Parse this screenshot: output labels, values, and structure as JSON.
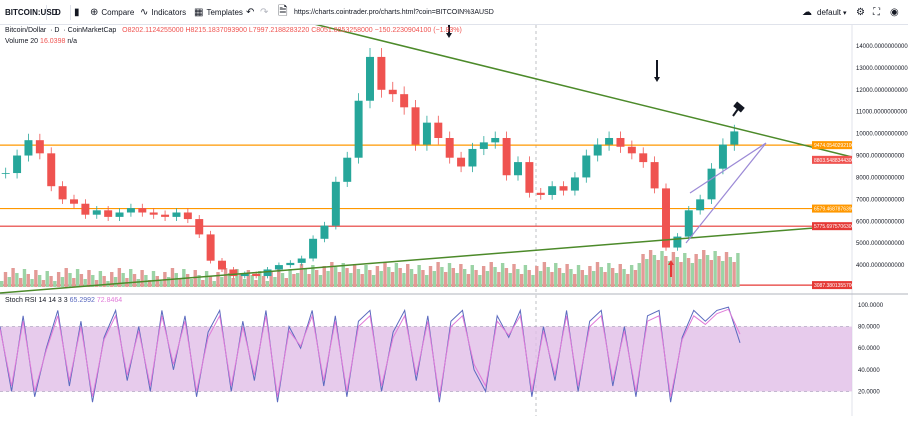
{
  "toolbar": {
    "symbol": "BITCOIN:USD",
    "interval": "D",
    "compare_label": "Compare",
    "indicators_label": "Indicators",
    "templates_label": "Templates",
    "url": "https://charts.cointrader.pro/charts.html?coin=BITCOIN%3AUSD",
    "layout_label": "default"
  },
  "legend": {
    "title": "Bitcoin/Dollar",
    "interval": "D",
    "source": "CoinMarketCap",
    "ohlc": "O8202.1124255000  H8215.1837093900  L7997.2188283220  C8051.8853258000  −150.2230904100 (−1.83%)",
    "volume": "Volume 20",
    "volume_value": "16.0398",
    "volume_na": "n/a",
    "rsi": "Stoch RSI 14 14 3 3",
    "rsi_k": "65.2992",
    "rsi_d": "72.8464"
  },
  "chart_data": [
    {
      "type": "line",
      "title": "Bitcoin/Dollar",
      "series": [
        {
          "name": "Bitcoin/Dollar",
          "values": [
            8200,
            9000,
            9700,
            9100,
            7600,
            7000,
            6800,
            6300,
            6500,
            6200,
            6400,
            6600,
            6400,
            6300,
            6200,
            6400,
            6100,
            5400,
            4200,
            3800,
            3500,
            3600,
            3500,
            3800,
            4000,
            4100,
            4300,
            5200,
            5800,
            7800,
            8900,
            11500,
            13500,
            12000,
            11800,
            11200,
            9500,
            10500,
            9800,
            8900,
            8500,
            9300,
            9600,
            9800,
            8100,
            8700,
            7300,
            7200,
            7600,
            7400,
            8000,
            9000,
            9500,
            9800,
            9400,
            9100,
            8700,
            7500,
            4800,
            5300,
            6500,
            7000,
            8400,
            9500,
            10100
          ]
        }
      ],
      "ylim": [
        3000,
        14500
      ],
      "y_ticks": [
        "14000.0000000000",
        "13000.0000000000",
        "12000.0000000000",
        "11000.0000000000",
        "10000.0000000000",
        "9000.0000000000",
        "8000.0000000000",
        "7000.0000000000",
        "6000.0000000000",
        "5000.0000000000",
        "4000.0000000000"
      ],
      "price_tags": [
        {
          "label": "9474.0540292100",
          "color": "#ff9800"
        },
        {
          "label": "8803.5488344300",
          "color": "#ef5350"
        },
        {
          "label": "6579.4687876390",
          "color": "#ff9800"
        },
        {
          "label": "5775.6975706300",
          "color": "#e53935"
        },
        {
          "label": "3087.3801355700",
          "color": "#e53935"
        }
      ],
      "horizontal_levels": [
        9474,
        6579,
        5776,
        3087
      ],
      "trendlines": [
        "descending resistance",
        "ascending support",
        "rising wedge"
      ]
    },
    {
      "type": "line",
      "title": "Stoch RSI 14 14 3 3",
      "series": [
        {
          "name": "K",
          "values": [
            80,
            20,
            90,
            15,
            60,
            95,
            25,
            85,
            10,
            70,
            95,
            30,
            80,
            20,
            95,
            40,
            90,
            15,
            75,
            95,
            20,
            85,
            30,
            95,
            10,
            80,
            60,
            95,
            25,
            90,
            15,
            85,
            95,
            20,
            75,
            95,
            30,
            90,
            10,
            85,
            95,
            40,
            20,
            90,
            70,
            95,
            15,
            80,
            30,
            95,
            20,
            85,
            95,
            25,
            80,
            15,
            90,
            95,
            10,
            70,
            95,
            85,
            95,
            98,
            65
          ]
        },
        {
          "name": "D",
          "values": [
            78,
            25,
            85,
            20,
            58,
            90,
            30,
            80,
            15,
            68,
            90,
            35,
            76,
            25,
            90,
            45,
            85,
            20,
            70,
            90,
            25,
            80,
            35,
            90,
            15,
            76,
            62,
            90,
            30,
            85,
            20,
            80,
            90,
            25,
            70,
            90,
            35,
            85,
            15,
            80,
            90,
            45,
            25,
            85,
            72,
            90,
            20,
            76,
            35,
            90,
            25,
            80,
            90,
            30,
            76,
            20,
            85,
            90,
            15,
            68,
            90,
            82,
            92,
            96,
            73
          ]
        }
      ],
      "ylim": [
        0,
        100
      ],
      "y_ticks": [
        "100.0000",
        "80.0000",
        "60.0000",
        "40.0000",
        "20.0000"
      ]
    }
  ],
  "colors": {
    "up": "#26a69a",
    "down": "#ef5350",
    "trend_green": "#4c8a2a",
    "wedge": "#9c8ad6",
    "rsi_fill": "#e1bee7",
    "rsi_k": "#5b6abf",
    "rsi_d": "#e07ad8"
  }
}
